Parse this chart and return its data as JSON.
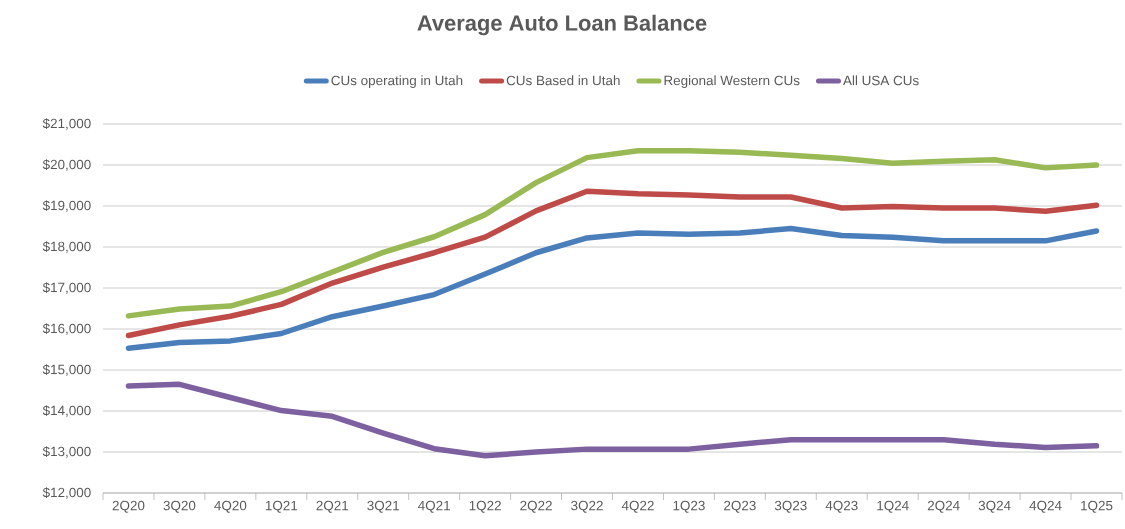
{
  "chart_data": {
    "type": "line",
    "title": "Average Auto Loan Balance",
    "categories": [
      "2Q20",
      "3Q20",
      "4Q20",
      "1Q21",
      "2Q21",
      "3Q21",
      "4Q21",
      "1Q22",
      "2Q22",
      "3Q22",
      "4Q22",
      "1Q23",
      "2Q23",
      "3Q23",
      "4Q23",
      "1Q24",
      "2Q24",
      "3Q24",
      "4Q24",
      "1Q25"
    ],
    "series": [
      {
        "name": "CUs operating in Utah",
        "color": "#4a7ebb",
        "values": [
          15530,
          15670,
          15710,
          15890,
          16300,
          16560,
          16840,
          17340,
          17860,
          18220,
          18340,
          18310,
          18340,
          18450,
          18280,
          18240,
          18150,
          18150,
          18150,
          18390
        ]
      },
      {
        "name": "CUs Based in Utah",
        "color": "#be4b48",
        "values": [
          15840,
          16100,
          16310,
          16600,
          17120,
          17510,
          17860,
          18240,
          18880,
          19360,
          19300,
          19270,
          19220,
          19220,
          18950,
          18990,
          18950,
          18950,
          18870,
          19020
        ]
      },
      {
        "name": "Regional Western CUs",
        "color": "#98b954",
        "values": [
          16320,
          16490,
          16560,
          16910,
          17390,
          17870,
          18250,
          18790,
          19570,
          20180,
          20350,
          20350,
          20310,
          20240,
          20160,
          20040,
          20090,
          20130,
          19930,
          20000
        ]
      },
      {
        "name": "All USA CUs",
        "color": "#7d60a0",
        "values": [
          14610,
          14650,
          14330,
          14010,
          13870,
          13460,
          13080,
          12910,
          13000,
          13070,
          13070,
          13070,
          13190,
          13300,
          13300,
          13300,
          13300,
          13190,
          13110,
          13150
        ]
      }
    ],
    "ylim": [
      12000,
      21000
    ],
    "yticks": [
      {
        "value": 12000,
        "label": "$12,000"
      },
      {
        "value": 13000,
        "label": "$13,000"
      },
      {
        "value": 14000,
        "label": "$14,000"
      },
      {
        "value": 15000,
        "label": "$15,000"
      },
      {
        "value": 16000,
        "label": "$16,000"
      },
      {
        "value": 17000,
        "label": "$17,000"
      },
      {
        "value": 18000,
        "label": "$18,000"
      },
      {
        "value": 19000,
        "label": "$19,000"
      },
      {
        "value": 20000,
        "label": "$20,000"
      },
      {
        "value": 21000,
        "label": "$21,000"
      }
    ],
    "grid": "y",
    "legend": "top",
    "marker": "none",
    "line_style": "solid"
  }
}
